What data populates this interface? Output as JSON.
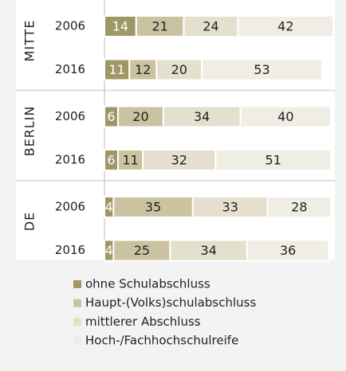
{
  "chart_data": {
    "type": "stacked-bar-horizontal",
    "groups": [
      "MITTE",
      "BERLIN",
      "DE"
    ],
    "categories": [
      "2006",
      "2016",
      "2006",
      "2016",
      "2006",
      "2016"
    ],
    "xlim": [
      0,
      101
    ],
    "series": [
      {
        "name": "ohne Schulabschluss",
        "color": "#a09766",
        "values": [
          14,
          11,
          6,
          6,
          4,
          4
        ]
      },
      {
        "name": "Haupt-(Volks)schulabschluss",
        "color": "#cbc3a0",
        "values": [
          21,
          12,
          20,
          11,
          35,
          25
        ]
      },
      {
        "name": "mittlerer Abschluss",
        "color": "#e4e0cd",
        "values": [
          24,
          20,
          34,
          32,
          33,
          34
        ]
      },
      {
        "name": "Hoch-/Fachhochschulreife",
        "color": "#efede4",
        "values": [
          42,
          53,
          40,
          51,
          28,
          36
        ]
      }
    ]
  }
}
